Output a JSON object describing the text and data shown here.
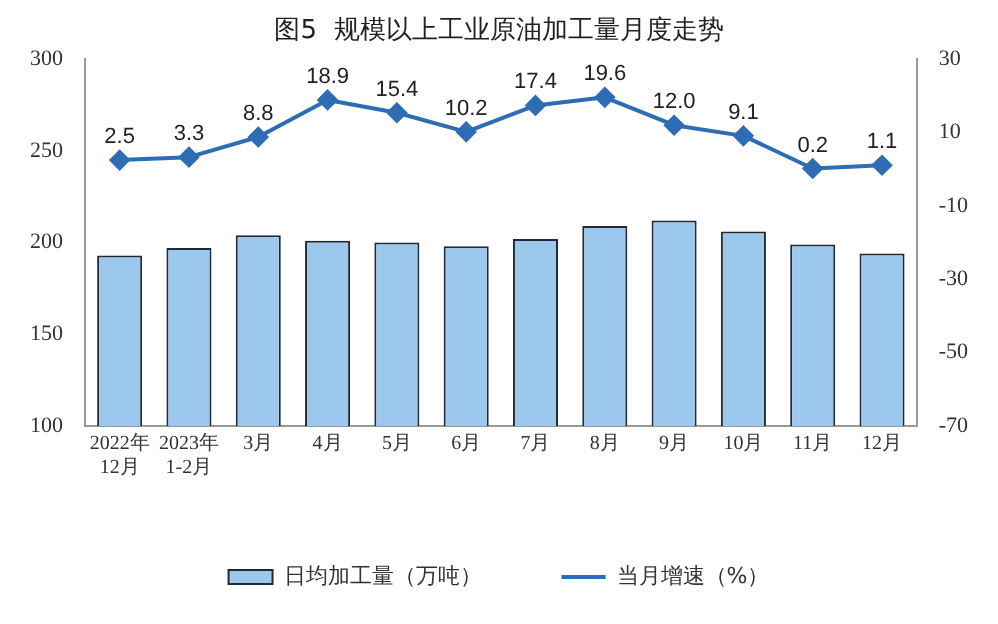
{
  "chart_data": {
    "type": "bar",
    "title": "图5  规模以上工业原油加工量月度走势",
    "categories": [
      "2022年\n12月",
      "2023年\n1-2月",
      "3月",
      "4月",
      "5月",
      "6月",
      "7月",
      "8月",
      "9月",
      "10月",
      "11月",
      "12月"
    ],
    "series": [
      {
        "name": "日均加工量（万吨）",
        "color": "#9dc8ee",
        "values": [
          193,
          197,
          204,
          201,
          200,
          198,
          202,
          209,
          212,
          206,
          199,
          194
        ]
      },
      {
        "name": "当月增速（%）",
        "type": "line",
        "axis": "y2",
        "color": "#2e6db4",
        "values": [
          2.5,
          3.3,
          8.8,
          18.9,
          15.4,
          10.2,
          17.4,
          19.6,
          12.0,
          9.1,
          0.2,
          1.1
        ],
        "value_labels": [
          "2.5",
          "3.3",
          "8.8",
          "18.9",
          "15.4",
          "10.2",
          "17.4",
          "19.6",
          "12.0",
          "9.1",
          "0.2",
          "1.1"
        ]
      }
    ],
    "ylim": [
      100,
      300
    ],
    "yticks": [
      100,
      150,
      200,
      250,
      300
    ],
    "y2lim": [
      -70,
      30
    ],
    "y2ticks": [
      -70,
      -50,
      -30,
      -10,
      10,
      30
    ],
    "grid": false,
    "legend": "bottom",
    "marker": "diamond",
    "line_style": "solid"
  }
}
